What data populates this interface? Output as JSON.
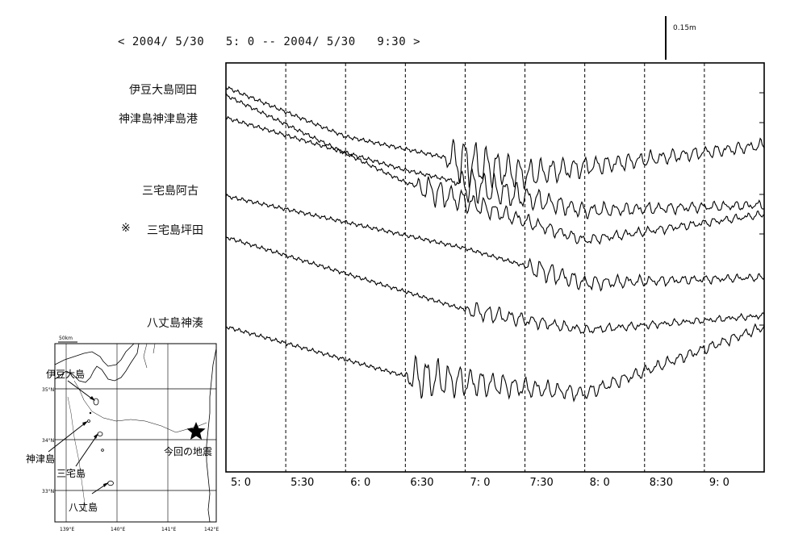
{
  "chart_data": {
    "type": "line",
    "title": "< 2004/ 5/30   5: 0 -- 2004/ 5/30   9:30 >",
    "scale_label": "0.15m",
    "x_ticks": [
      "5: 0",
      "5:30",
      "6: 0",
      "6:30",
      "7: 0",
      "7:30",
      "8: 0",
      "8:30",
      "9: 0"
    ],
    "x_range_minutes": [
      300,
      570
    ],
    "grid": "vertical dashed lines every 30 minutes",
    "series": [
      {
        "name": "伊豆大島岡田",
        "mark": "",
        "start_time": "5:00",
        "onset": "6:50",
        "amplitude": 0.14,
        "baseline": [
          [
            300,
            0.0
          ],
          [
            360,
            0.17
          ],
          [
            450,
            0.3
          ],
          [
            570,
            0.2
          ]
        ]
      },
      {
        "name": "神津島神津島港",
        "mark": "",
        "start_time": "5:00",
        "onset": "6:55",
        "amplitude": 0.1,
        "baseline": [
          [
            300,
            0.0
          ],
          [
            390,
            0.18
          ],
          [
            480,
            0.32
          ],
          [
            570,
            0.3
          ]
        ]
      },
      {
        "name": "三宅島阿古",
        "mark": "",
        "start_time": "5:00",
        "onset": "7:30",
        "amplitude": 0.06,
        "baseline": [
          [
            300,
            0.0
          ],
          [
            420,
            0.18
          ],
          [
            480,
            0.3
          ],
          [
            570,
            0.28
          ]
        ]
      },
      {
        "name": "三宅島坪田",
        "mark": "※",
        "start_time": "5:00",
        "onset": "7:00",
        "amplitude": 0.05,
        "baseline": [
          [
            300,
            0.0
          ],
          [
            420,
            0.25
          ],
          [
            480,
            0.32
          ],
          [
            570,
            0.27
          ]
        ]
      },
      {
        "name": "八丈島神湊",
        "mark": "",
        "start_time": "5:00",
        "onset": "6:30",
        "amplitude": 0.12,
        "baseline": [
          [
            300,
            0.0
          ],
          [
            390,
            0.17
          ],
          [
            480,
            0.23
          ],
          [
            570,
            0.0
          ]
        ]
      }
    ],
    "extra_trace": {
      "start_time": "5:00",
      "onset": "6:35",
      "amplitude": 0.08,
      "baseline": [
        [
          300,
          0.0
        ],
        [
          390,
          0.3
        ],
        [
          480,
          0.5
        ],
        [
          570,
          0.41
        ]
      ]
    }
  },
  "map": {
    "scale_label": "50km",
    "lat_labels": [
      "35°N",
      "34°N",
      "33°N"
    ],
    "lon_labels": [
      "139°E",
      "140°E",
      "141°E",
      "142°E"
    ],
    "islands": {
      "izu_oshima": "伊豆大島",
      "kozushima": "神津島",
      "miyakejima": "三宅島",
      "hachijojima": "八丈島"
    },
    "epicenter_label": "今回の地震"
  }
}
